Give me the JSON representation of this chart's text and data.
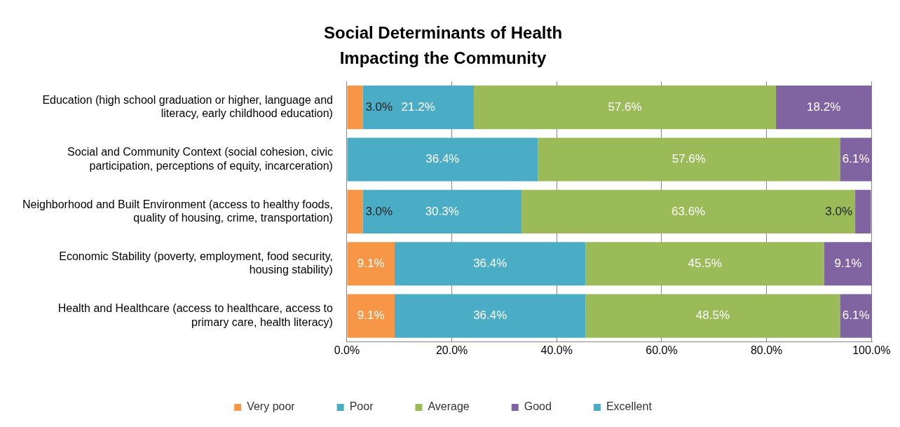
{
  "chart_data": {
    "type": "bar",
    "orientation": "horizontal",
    "stacked": true,
    "title": "Social Determinants of Health Impacting the Community",
    "categories": [
      "Education (high school graduation or higher, language and literacy, early childhood education)",
      "Social and Community Context (social cohesion, civic participation, perceptions of equity, incarceration)",
      "Neighborhood and Built Environment (access to healthy foods, quality of housing, crime, transportation)",
      "Economic Stability (poverty, employment, food security, housing stability)",
      "Health and Healthcare (access to healthcare, access to primary care, health literacy)"
    ],
    "series": [
      {
        "name": "Very poor",
        "color": "#f79646",
        "values": [
          3.0,
          0,
          3.0,
          9.1,
          9.1
        ],
        "value_labels": [
          "3.0%",
          null,
          "3.0%",
          "9.1%",
          "9.1%"
        ]
      },
      {
        "name": "Poor",
        "color": "#4bacc6",
        "values": [
          21.2,
          36.4,
          30.3,
          36.4,
          36.4
        ],
        "value_labels": [
          "21.2%",
          "36.4%",
          "30.3%",
          "36.4%",
          "36.4%"
        ]
      },
      {
        "name": "Average",
        "color": "#9bbb59",
        "values": [
          57.6,
          57.6,
          63.6,
          45.5,
          48.5
        ],
        "value_labels": [
          "57.6%",
          "57.6%",
          "63.6%",
          "45.5%",
          "48.5%"
        ]
      },
      {
        "name": "Good",
        "color": "#8064a2",
        "values": [
          18.2,
          6.1,
          3.0,
          9.1,
          6.1
        ],
        "value_labels": [
          "18.2%",
          "6.1%",
          "3.0%",
          "9.1%",
          "6.1%"
        ]
      },
      {
        "name": "Excellent",
        "color": "#4bacc6",
        "values": [
          0,
          0,
          0,
          0,
          0
        ],
        "value_labels": [
          null,
          null,
          null,
          null,
          null
        ]
      }
    ],
    "xlim": [
      0,
      100.1
    ],
    "xticks": [
      {
        "value": 0,
        "label": "0.0%"
      },
      {
        "value": 20,
        "label": "20.0%"
      },
      {
        "value": 40,
        "label": "40.0%"
      },
      {
        "value": 60,
        "label": "60.0%"
      },
      {
        "value": 80,
        "label": "80.0%"
      },
      {
        "value": 100,
        "label": "100.0%"
      }
    ],
    "grid": "x",
    "legend": "bottom"
  }
}
